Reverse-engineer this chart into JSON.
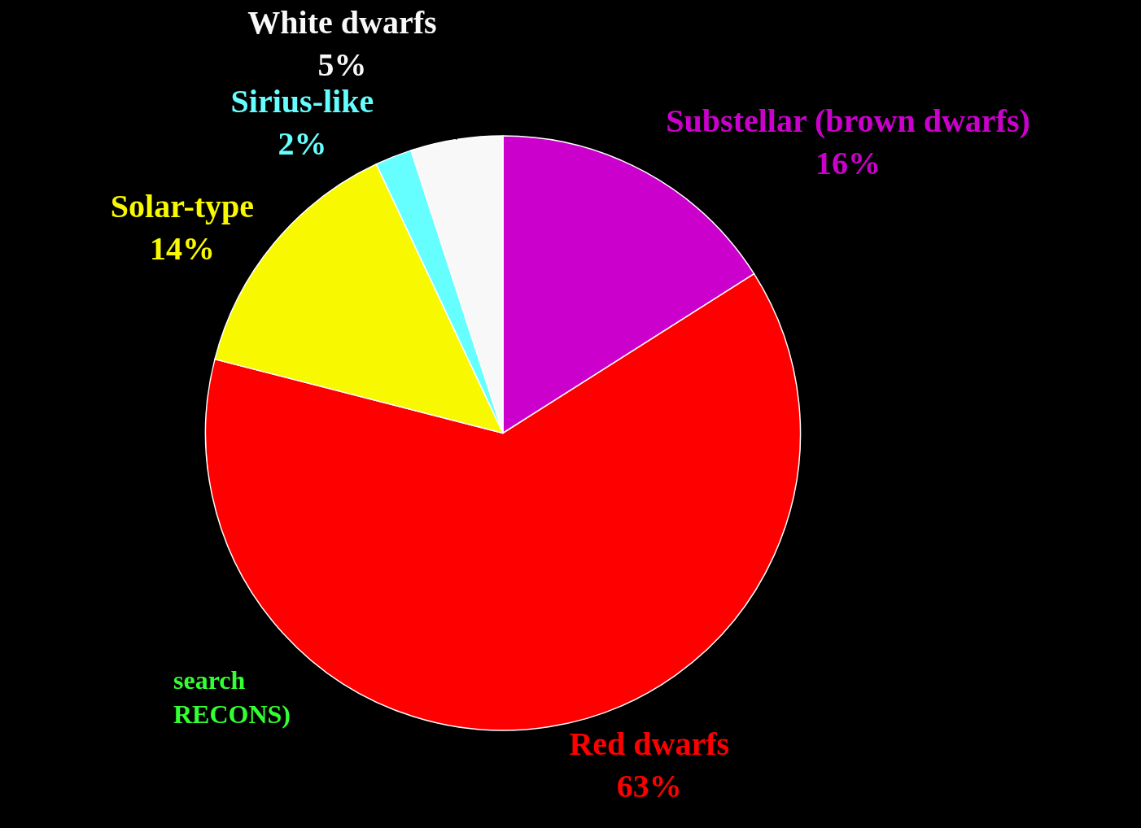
{
  "chart_data": {
    "type": "pie",
    "categories": [
      "Substellar (brown dwarfs)",
      "Red dwarfs",
      "Solar-type",
      "Sirius-like",
      "White dwarfs"
    ],
    "values": [
      16,
      63,
      14,
      2,
      5
    ],
    "value_labels": [
      "16%",
      "63%",
      "14%",
      "2%",
      "5%"
    ],
    "colors": [
      "#cc00cc",
      "#ff0000",
      "#f8f800",
      "#66ffff",
      "#f8f8f8"
    ],
    "annotations": [
      "search\nRECONS)"
    ]
  }
}
